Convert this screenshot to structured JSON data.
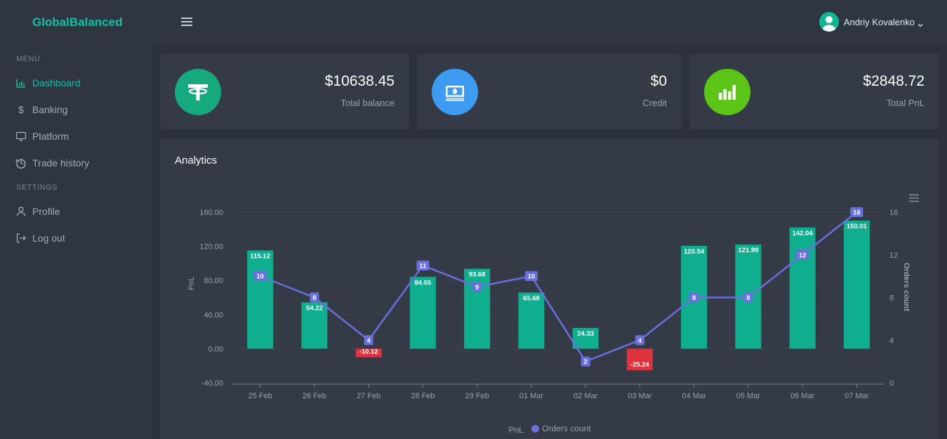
{
  "app": {
    "brand": "GlobalBalanced"
  },
  "sidebar": {
    "menu_title": "MENU",
    "menu_items": [
      {
        "label": "Dashboard",
        "icon": "bar-chart-icon",
        "active": true
      },
      {
        "label": "Banking",
        "icon": "dollar-icon"
      },
      {
        "label": "Platform",
        "icon": "monitor-icon"
      },
      {
        "label": "Trade history",
        "icon": "history-icon"
      }
    ],
    "settings_title": "SETTINGS",
    "settings_items": [
      {
        "label": "Profile",
        "icon": "user-icon"
      },
      {
        "label": "Log out",
        "icon": "logout-icon"
      }
    ]
  },
  "header": {
    "user_name": "Andriy Kovalenko"
  },
  "stats": [
    {
      "value": "$10638.45",
      "label": "Total balance",
      "icon": "tether-icon",
      "color": "#16a97e"
    },
    {
      "value": "$0",
      "label": "Credit",
      "icon": "cash-icon",
      "color": "#3d9cf2"
    },
    {
      "value": "$2848.72",
      "label": "Total PnL",
      "icon": "bar-chart-icon",
      "color": "#5bc417"
    }
  ],
  "analytics": {
    "title": "Analytics"
  },
  "chart_data": {
    "type": "bar",
    "categories": [
      "25 Feb",
      "26 Feb",
      "27 Feb",
      "28 Feb",
      "29 Feb",
      "01 Mar",
      "02 Mar",
      "03 Mar",
      "04 Mar",
      "05 Mar",
      "06 Mar",
      "07 Mar"
    ],
    "series": [
      {
        "name": "PnL",
        "type": "bar",
        "values": [
          115.12,
          54.22,
          -10.12,
          84.05,
          93.68,
          65.68,
          24.33,
          -25.24,
          120.54,
          121.99,
          142.04,
          150.01
        ],
        "color_positive": "#0fae8e",
        "color_negative": "#e0323e"
      },
      {
        "name": "Orders count",
        "type": "line",
        "values": [
          10,
          8,
          4,
          11,
          9,
          10,
          2,
          4,
          8,
          8,
          12,
          16
        ],
        "color": "#6a6fdd"
      }
    ],
    "ylabel": "PnL",
    "y2label": "Orders count",
    "ylim": [
      -40,
      160
    ],
    "yticks": [
      "160.00",
      "120.00",
      "80.00",
      "40.00",
      "0.00",
      "-40.00"
    ],
    "y2lim": [
      0,
      16
    ],
    "y2ticks": [
      "16",
      "12",
      "8",
      "4",
      "0"
    ],
    "legend": [
      "PnL",
      "Orders count"
    ],
    "legend_position": "bottom"
  }
}
